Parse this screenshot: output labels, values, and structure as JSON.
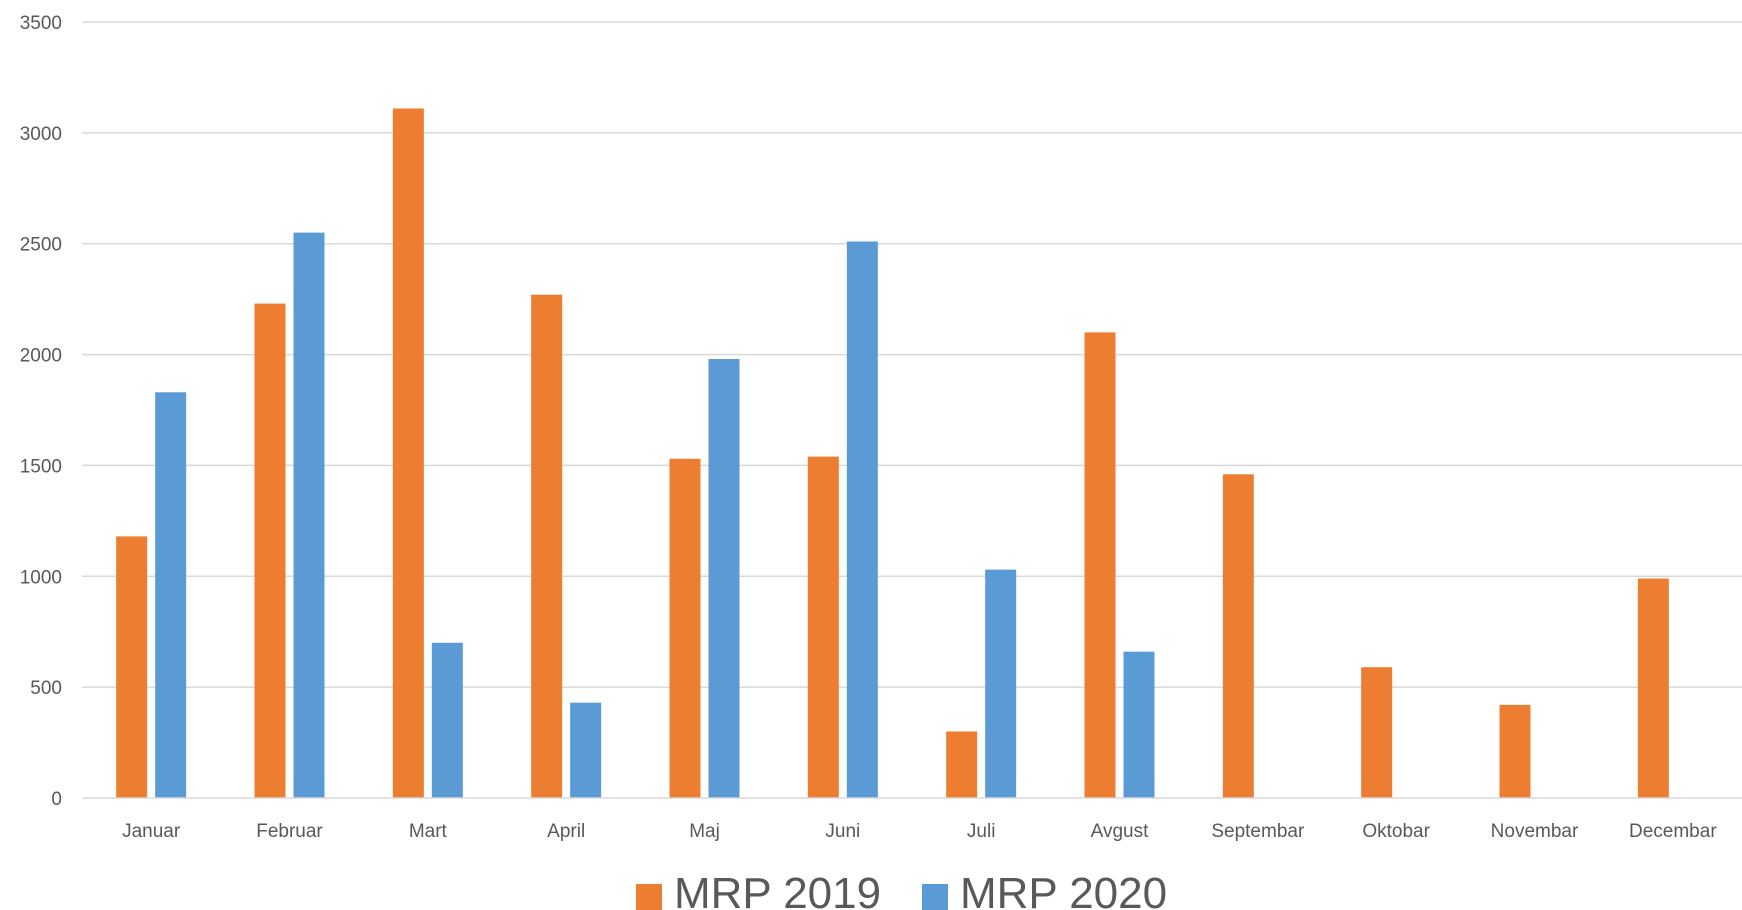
{
  "chart_data": {
    "type": "bar",
    "categories": [
      "Januar",
      "Februar",
      "Mart",
      "April",
      "Maj",
      "Juni",
      "Juli",
      "Avgust",
      "Septembar",
      "Oktobar",
      "Novembar",
      "Decembar"
    ],
    "series": [
      {
        "name": "MRP 2019",
        "color": "#ED7D31",
        "values": [
          1180,
          2230,
          3110,
          2270,
          1530,
          1540,
          300,
          2100,
          1460,
          590,
          420,
          990
        ]
      },
      {
        "name": "MRP 2020",
        "color": "#5B9BD5",
        "values": [
          1830,
          2550,
          700,
          430,
          1980,
          2510,
          1030,
          660,
          null,
          null,
          null,
          null
        ]
      }
    ],
    "ylim": [
      0,
      3500
    ],
    "yticks": [
      0,
      500,
      1000,
      1500,
      2000,
      2500,
      3000,
      3500
    ],
    "grid": true,
    "legend_position": "bottom",
    "title": "",
    "xlabel": "",
    "ylabel": ""
  }
}
